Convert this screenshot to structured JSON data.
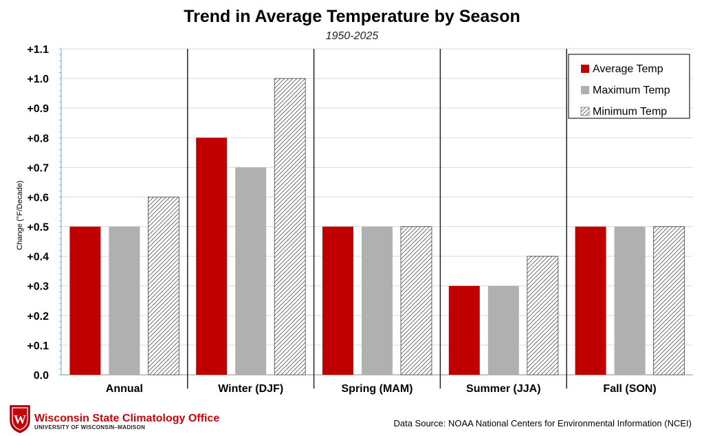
{
  "chart_data": {
    "type": "bar",
    "title": "Trend in Average Temperature by Season",
    "subtitle": "1950-2025",
    "ylabel": "Change (°F/Decade)",
    "xlabel": "",
    "ylim": [
      0,
      1.1
    ],
    "yticks": [
      "0.0",
      "+0.1",
      "+0.2",
      "+0.3",
      "+0.4",
      "+0.5",
      "+0.6",
      "+0.7",
      "+0.8",
      "+0.9",
      "+1.0",
      "+1.1"
    ],
    "categories": [
      "Annual",
      "Winter (DJF)",
      "Spring (MAM)",
      "Summer (JJA)",
      "Fall (SON)"
    ],
    "series": [
      {
        "name": "Average Temp",
        "values": [
          0.5,
          0.8,
          0.5,
          0.3,
          0.5
        ],
        "color": "#c00000",
        "pattern": "solid"
      },
      {
        "name": "Maximum Temp",
        "values": [
          0.5,
          0.7,
          0.5,
          0.3,
          0.5
        ],
        "color": "#b0b0b0",
        "pattern": "solid"
      },
      {
        "name": "Minimum Temp",
        "values": [
          0.6,
          1.0,
          0.5,
          0.4,
          0.5
        ],
        "color": "#ffffff",
        "pattern": "hatch"
      }
    ],
    "legend": "top-right",
    "grid": true
  },
  "footer": {
    "org_name": "Wisconsin State Climatology Office",
    "org_sub": "UNIVERSITY OF WISCONSIN–MADISON",
    "logo_letter": "W",
    "source": "Data Source: NOAA National Centers for Environmental Information (NCEI)"
  },
  "colors": {
    "accent": "#c5050c",
    "grid": "#d9d9d9",
    "axis": "#7fb3d5"
  }
}
